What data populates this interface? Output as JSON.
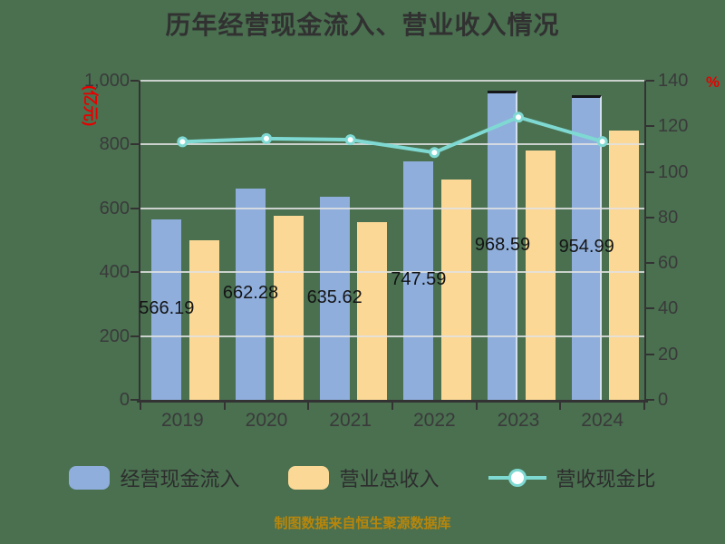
{
  "title": "历年经营现金流入、营业收入情况",
  "source_note": "制图数据来自恒生聚源数据库",
  "left_axis": {
    "name": "(亿元)",
    "ticks": [
      "1,000",
      "800",
      "600",
      "400",
      "200",
      "0"
    ],
    "min": 0,
    "max": 1000
  },
  "right_axis": {
    "name": "%",
    "ticks": [
      "140",
      "120",
      "100",
      "80",
      "60",
      "40",
      "20",
      "0"
    ],
    "min": 0,
    "max": 140
  },
  "legend": {
    "cash_inflow_label": "经营现金流入",
    "revenue_label": "营业总收入",
    "ratio_label": "营收现金比"
  },
  "colors": {
    "background": "#4A7050",
    "bar_cash_inflow": "#8FAEDC",
    "bar_revenue": "#FBD896",
    "ratio_line": "#7FD9D3",
    "axis_name_red": "#E60000",
    "axis_text": "#3A3A3A",
    "grid": "#E2E2E2",
    "bar_value_text": "#141414",
    "source_text": "#B8860B"
  },
  "chart_data": {
    "type": "bar",
    "subtype": "grouped-bars-with-line-overlay",
    "categories": [
      "2019",
      "2020",
      "2021",
      "2022",
      "2023",
      "2024"
    ],
    "series": [
      {
        "name": "经营现金流入",
        "type": "bar",
        "axis": "left",
        "values": [
          566.19,
          662.28,
          635.62,
          747.59,
          968.59,
          954.99
        ],
        "labels": [
          "566.19",
          "662.28",
          "635.62",
          "747.59",
          "968.59",
          "954.99"
        ],
        "top_border_years": [
          "2023",
          "2024"
        ]
      },
      {
        "name": "营业总收入",
        "type": "bar",
        "axis": "left",
        "estimated": true,
        "values": [
          500,
          578,
          557,
          689,
          781,
          843
        ]
      },
      {
        "name": "营收现金比",
        "type": "line",
        "axis": "right",
        "unit": "%",
        "estimated": true,
        "values": [
          113.2,
          114.6,
          114.1,
          108.5,
          124.0,
          113.3
        ]
      }
    ],
    "left_ylim": [
      0,
      1000
    ],
    "right_ylim": [
      0,
      140
    ],
    "grid": true,
    "legend_position": "bottom"
  }
}
